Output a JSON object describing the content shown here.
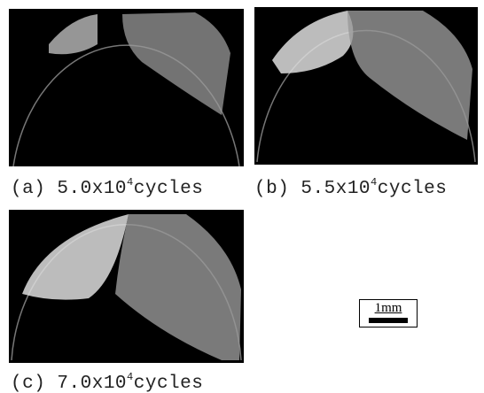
{
  "panels": [
    {
      "label": "(a)",
      "mantissa": "5.0x10",
      "exponent": "4",
      "unit": "cycles"
    },
    {
      "label": "(b)",
      "mantissa": "5.5x10",
      "exponent": "4",
      "unit": "cycles"
    },
    {
      "label": "(c)",
      "mantissa": "7.0x10",
      "exponent": "4",
      "unit": "cycles"
    }
  ],
  "scale_bar": "1mm"
}
